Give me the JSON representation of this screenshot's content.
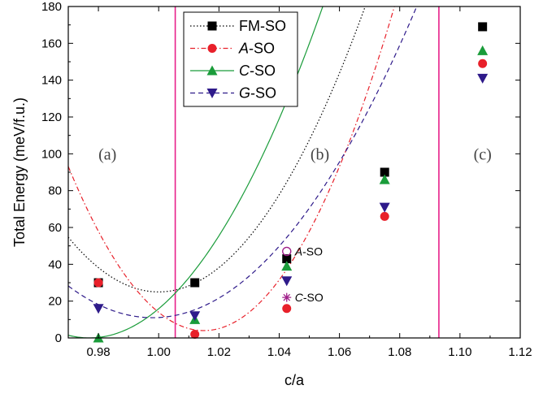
{
  "chart_data": {
    "type": "scatter",
    "xlabel": "c/a",
    "ylabel": "Total Energy (meV/f.u.)",
    "xlim": [
      0.97,
      1.12
    ],
    "ylim": [
      0,
      180
    ],
    "xticks": [
      0.98,
      1.0,
      1.02,
      1.04,
      1.06,
      1.08,
      1.1,
      1.12
    ],
    "xtick_labels": [
      "0.98",
      "1.00",
      "1.02",
      "1.04",
      "1.06",
      "1.08",
      "1.10",
      "1.12"
    ],
    "yticks": [
      0,
      20,
      40,
      60,
      80,
      100,
      120,
      140,
      160,
      180
    ],
    "ytick_labels": [
      "0",
      "20",
      "40",
      "60",
      "80",
      "100",
      "120",
      "140",
      "160",
      "180"
    ],
    "legend_position": "top-left",
    "series": [
      {
        "name": "FM-SO",
        "marker": "square",
        "line": "dotted",
        "color": "#000000",
        "x": [
          0.98,
          1.012,
          1.0425,
          1.075,
          1.1075
        ],
        "y": [
          30,
          30,
          43,
          90,
          169
        ],
        "fit": {
          "vertex_x": 1.0,
          "vertex_y": 25,
          "a": 33000
        }
      },
      {
        "name": "A-SO",
        "marker": "circle",
        "line": "dash-dot",
        "color": "#e8202a",
        "x": [
          0.98,
          1.012,
          1.0425,
          1.075,
          1.1075
        ],
        "y": [
          30,
          2,
          16,
          66,
          149
        ],
        "fit": {
          "vertex_x": 1.015,
          "vertex_y": 4,
          "a": 44000
        }
      },
      {
        "name": "C-SO",
        "marker": "triangle-up",
        "line": "solid",
        "color": "#1a9c3a",
        "x": [
          0.98,
          1.012,
          1.0425,
          1.075,
          1.1075
        ],
        "y": [
          0,
          10,
          39,
          86,
          156
        ],
        "fit": {
          "vertex_x": 0.977,
          "vertex_y": 0,
          "a": 30000
        }
      },
      {
        "name": "G-SO",
        "marker": "triangle-down",
        "line": "dashed",
        "color": "#2e1a8a",
        "x": [
          0.98,
          1.012,
          1.0425,
          1.075,
          1.1075
        ],
        "y": [
          16,
          12,
          31,
          71,
          141
        ],
        "fit": {
          "vertex_x": 0.998,
          "vertex_y": 11,
          "a": 22000
        }
      }
    ],
    "extra_points": [
      {
        "label": "A-SO",
        "marker": "circle-open",
        "color": "#a0208a",
        "x": 1.0425,
        "y": 47
      },
      {
        "label": "C-SO",
        "marker": "asterisk",
        "color": "#a0208a",
        "x": 1.0425,
        "y": 22
      }
    ],
    "region_lines": {
      "color": "#e8208a",
      "x": [
        1.0055,
        1.093
      ]
    },
    "region_labels": [
      {
        "text": "(a)",
        "x": 0.983,
        "y": 100
      },
      {
        "text": "(b)",
        "x": 1.0535,
        "y": 100
      },
      {
        "text": "(c)",
        "x": 1.1075,
        "y": 100
      }
    ]
  }
}
